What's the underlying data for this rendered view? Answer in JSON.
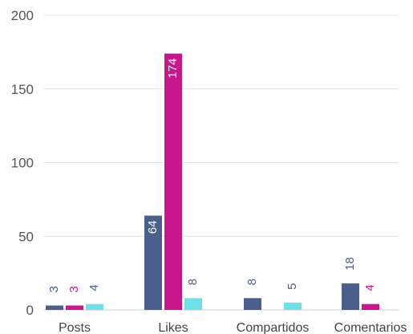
{
  "chart_data": {
    "type": "bar",
    "categories": [
      "Posts",
      "Likes",
      "Compartidos",
      "Comentarios"
    ],
    "series": [
      {
        "color": "#4a5f8c",
        "values": [
          3,
          64,
          8,
          18
        ]
      },
      {
        "color": "#c8168c",
        "values": [
          3,
          174,
          null,
          4
        ]
      },
      {
        "color": "#6fe0e6",
        "values": [
          4,
          8,
          5,
          null
        ]
      }
    ],
    "y_ticks": [
      0,
      50,
      100,
      150,
      200
    ],
    "ylim": [
      0,
      200
    ],
    "grid": true,
    "title": "",
    "xlabel": "",
    "ylabel": ""
  }
}
